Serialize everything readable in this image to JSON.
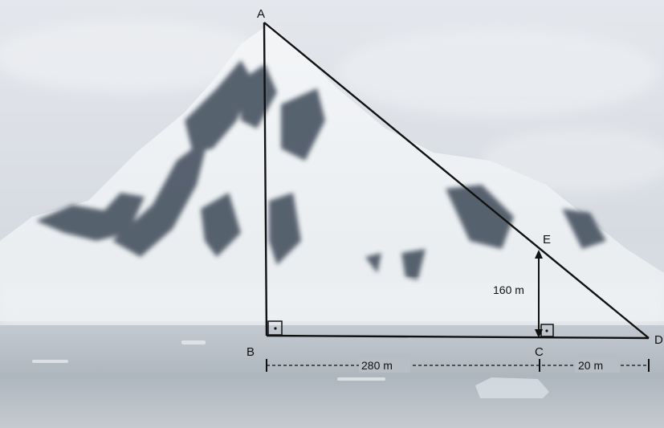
{
  "points": {
    "A": "A",
    "B": "B",
    "C": "C",
    "D": "D",
    "E": "E"
  },
  "measurements": {
    "height_EC": "160 m",
    "length_BC": "280 m",
    "length_CD": "20 m"
  },
  "colors": {
    "lines": "#111111",
    "sky": "#dfe3e8",
    "sea": "#b4bcc4",
    "rock": "#3c4654"
  }
}
